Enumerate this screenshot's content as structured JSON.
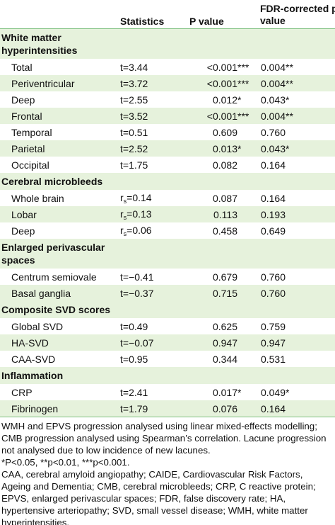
{
  "headers": {
    "statistics": "Statistics",
    "p_value": "P value",
    "fdr_line1": "FDR-corrected p",
    "fdr_line2": "value"
  },
  "sections": [
    {
      "title_line1": "White matter",
      "title_line2": "hyperintensities",
      "rows": [
        {
          "label": "Total",
          "stat": "t=3.44",
          "p": "<0.001",
          "p_sig": "***",
          "fdr": "0.004",
          "fdr_sig": "**"
        },
        {
          "label": "Periventricular",
          "stat": "t=3.72",
          "p": "<0.001",
          "p_sig": "***",
          "fdr": "0.004",
          "fdr_sig": "**"
        },
        {
          "label": "Deep",
          "stat": "t=2.55",
          "p": "0.012",
          "p_sig": "*",
          "fdr": "0.043",
          "fdr_sig": "*"
        },
        {
          "label": "Frontal",
          "stat": "t=3.52",
          "p": "<0.001",
          "p_sig": "***",
          "fdr": "0.004",
          "fdr_sig": "**"
        },
        {
          "label": "Temporal",
          "stat": "t=0.51",
          "p": "0.609",
          "p_sig": "",
          "fdr": "0.760",
          "fdr_sig": ""
        },
        {
          "label": "Parietal",
          "stat": "t=2.52",
          "p": "0.013",
          "p_sig": "*",
          "fdr": "0.043",
          "fdr_sig": "*"
        },
        {
          "label": "Occipital",
          "stat": "t=1.75",
          "p": "0.082",
          "p_sig": "",
          "fdr": "0.164",
          "fdr_sig": ""
        }
      ]
    },
    {
      "title_line1": "Cerebral microbleeds",
      "rows": [
        {
          "label": "Whole brain",
          "stat_prefix": "r",
          "stat_sub": "s",
          "stat_value": "=0.14",
          "p": "0.087",
          "p_sig": "",
          "fdr": "0.164",
          "fdr_sig": ""
        },
        {
          "label": "Lobar",
          "stat_prefix": "r",
          "stat_sub": "s",
          "stat_value": "=0.13",
          "p": "0.113",
          "p_sig": "",
          "fdr": "0.193",
          "fdr_sig": ""
        },
        {
          "label": "Deep",
          "stat_prefix": "r",
          "stat_sub": "s",
          "stat_value": "=0.06",
          "p": "0.458",
          "p_sig": "",
          "fdr": "0.649",
          "fdr_sig": ""
        }
      ]
    },
    {
      "title_line1": "Enlarged perivascular",
      "title_line2": "spaces",
      "rows": [
        {
          "label": "Centrum semiovale",
          "stat": "t=−0.41",
          "p": "0.679",
          "p_sig": "",
          "fdr": "0.760",
          "fdr_sig": ""
        },
        {
          "label": "Basal ganglia",
          "stat": "t=−0.37",
          "p": "0.715",
          "p_sig": "",
          "fdr": "0.760",
          "fdr_sig": ""
        }
      ]
    },
    {
      "title_line1": "Composite SVD scores",
      "rows": [
        {
          "label": "Global SVD",
          "stat": "t=0.49",
          "p": "0.625",
          "p_sig": "",
          "fdr": "0.759",
          "fdr_sig": ""
        },
        {
          "label": "HA-SVD",
          "stat": "t=−0.07",
          "p": "0.947",
          "p_sig": "",
          "fdr": "0.947",
          "fdr_sig": ""
        },
        {
          "label": "CAA-SVD",
          "stat": "t=0.95",
          "p": "0.344",
          "p_sig": "",
          "fdr": "0.531",
          "fdr_sig": ""
        }
      ]
    },
    {
      "title_line1": "Inflammation",
      "rows": [
        {
          "label": "CRP",
          "stat": "t=2.41",
          "p": "0.017",
          "p_sig": "*",
          "fdr": "0.049",
          "fdr_sig": "*"
        },
        {
          "label": "Fibrinogen",
          "stat": "t=1.79",
          "p": "0.076",
          "p_sig": "",
          "fdr": "0.164",
          "fdr_sig": ""
        }
      ]
    }
  ],
  "notes": [
    "WMH and EPVS progression analysed using linear mixed-effects modelling; CMB progression analysed using Spearman’s correlation. Lacune progression not analysed due to low incidence of new lacunes.",
    "*P<0.05, **p<0.01, ***p<0.001.",
    "CAA, cerebral amyloid angiopathy; CAIDE, Cardiovascular Risk Factors, Ageing and Dementia; CMB, cerebral microbleeds; CRP, C reactive protein; EPVS, enlarged perivascular spaces; FDR, false discovery rate; HA, hypertensive arteriopathy; SVD, small vessel disease; WMH, white matter hyperintensities."
  ],
  "colors": {
    "shade": "#e6f2dc",
    "rule": "#7ec080"
  }
}
